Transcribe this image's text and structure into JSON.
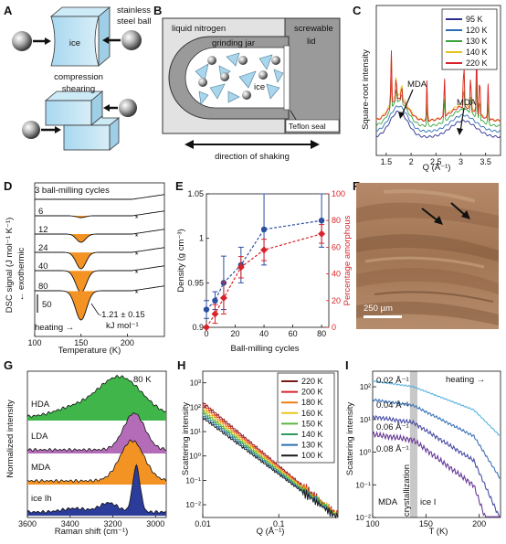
{
  "panels": {
    "A": {
      "letter": "A",
      "ice": "ice",
      "ball_label": [
        "stainless",
        "steel ball"
      ],
      "compression": "compression",
      "shearing": "shearing"
    },
    "B": {
      "letter": "B",
      "liquid_nitrogen": "liquid nitrogen",
      "screwable": "screwable",
      "lid": "lid",
      "grinding_jar": "grinding jar",
      "ice": "ice",
      "teflon": "Teflon seal",
      "shaking": "direction of shaking"
    },
    "C": {
      "letter": "C",
      "ylabel": "Square-root intensity",
      "xlabel": "Q (Å⁻¹)",
      "mda": "MDA",
      "mda2": "MDA"
    },
    "D": {
      "letter": "D",
      "ylabel": "DSC signal (J mol⁻¹ K⁻¹)",
      "exo": "← exothermic",
      "xlabel": "Temperature (K)",
      "header": "3 ball-milling cycles",
      "scale": "50",
      "heating": "heating →",
      "enthalpy": "-1.21 ± 0.15",
      "enthalpy_unit": "kJ mol⁻¹",
      "star": "*"
    },
    "E": {
      "letter": "E",
      "ylabel_left": "Density (g cm⁻³)",
      "ylabel_right": "Percentage amorphous",
      "xlabel": "Ball-milling cycles"
    },
    "F": {
      "letter": "F",
      "scalebar": "250 µm"
    },
    "G": {
      "letter": "G",
      "temp": "80 K",
      "ylabel": "Normalized intensity",
      "xlabel": "Raman shift (cm⁻¹)",
      "labels": [
        "HDA",
        "LDA",
        "MDA",
        "ice Ih"
      ]
    },
    "H": {
      "letter": "H",
      "ylabel": "Scattering intensity",
      "xlabel": "Q (Å⁻¹)"
    },
    "I": {
      "letter": "I",
      "ylabel": "Scattering intensity",
      "xlabel": "T (K)",
      "heating": "heating →",
      "q_labels": [
        "0.02 Å⁻¹",
        "0.04 Å⁻¹",
        "0.06 Å⁻¹",
        "0.08 Å⁻¹"
      ],
      "mda": "MDA",
      "cryst": "crystallization",
      "ice": "ice I"
    }
  },
  "chart_data": [
    {
      "panel": "C",
      "type": "line",
      "xlabel": "Q (Å⁻¹)",
      "ylabel": "Square-root intensity",
      "xlim": [
        1.3,
        3.8
      ],
      "xticks": [
        "1.5",
        "2",
        "2.5",
        "3",
        "3.5"
      ],
      "xtick_values": [
        1.5,
        2.0,
        2.5,
        3.0,
        3.5
      ],
      "legend_position": "top-right",
      "series": [
        {
          "name": "95 K",
          "color": "#2b2f8f"
        },
        {
          "name": "120 K",
          "color": "#2a6fb4"
        },
        {
          "name": "130 K",
          "color": "#3aa33a"
        },
        {
          "name": "140 K",
          "color": "#e3c21a"
        },
        {
          "name": "220 K",
          "color": "#d9232a"
        }
      ],
      "peaks_Q": [
        1.6,
        1.7,
        1.81,
        2.32,
        2.67,
        3.06,
        3.2,
        3.32,
        3.38,
        3.55
      ]
    },
    {
      "panel": "D",
      "type": "line",
      "xlabel": "Temperature (K)",
      "xlim": [
        100,
        240
      ],
      "xticks": [
        "100",
        "150",
        "200"
      ],
      "xtick_values": [
        100,
        150,
        200
      ],
      "series": [
        {
          "name": "3 ball-milling cycles",
          "label": "",
          "dip_depth": 0
        },
        {
          "name": "6",
          "label": "6",
          "dip_depth": 2
        },
        {
          "name": "12",
          "label": "12",
          "dip_depth": 9
        },
        {
          "name": "24",
          "label": "24",
          "dip_depth": 18
        },
        {
          "name": "40",
          "label": "40",
          "dip_depth": 24
        },
        {
          "name": "80",
          "label": "80",
          "dip_depth": 32
        }
      ],
      "peak_T": 150
    },
    {
      "panel": "E",
      "type": "scatter",
      "xlabel": "Ball-milling cycles",
      "ylabel_left": "Density (g cm⁻³)",
      "ylabel_right": "Percentage amorphous",
      "xlim": [
        0,
        85
      ],
      "ylim_left": [
        0.9,
        1.05
      ],
      "ylim_right": [
        0,
        100
      ],
      "xticks": [
        "0",
        "20",
        "40",
        "60",
        "80"
      ],
      "xtick_values": [
        0,
        20,
        40,
        60,
        80
      ],
      "yticks_left": [
        "0.9",
        "0.95",
        "1",
        "1.05"
      ],
      "yticks_left_values": [
        0.9,
        0.95,
        1.0,
        1.05
      ],
      "yticks_right": [
        "0",
        "20",
        "40",
        "60",
        "80",
        "100"
      ],
      "yticks_right_values": [
        0,
        20,
        40,
        60,
        80,
        100
      ],
      "series": [
        {
          "name": "density",
          "color": "#2d4fa0",
          "x": [
            0,
            6,
            12,
            24,
            40,
            80
          ],
          "values": [
            0.92,
            0.93,
            0.95,
            0.97,
            1.01,
            1.02
          ],
          "err": [
            0.01,
            0.01,
            0.03,
            0.02,
            0.04,
            0.03
          ]
        },
        {
          "name": "percentage amorphous",
          "color": "#d9232a",
          "x": [
            0,
            6,
            12,
            24,
            40,
            80
          ],
          "values": [
            0,
            10,
            22,
            45,
            58,
            70
          ],
          "err": [
            0,
            7,
            12,
            8,
            8,
            7
          ]
        }
      ]
    },
    {
      "panel": "G",
      "type": "area",
      "xlabel": "Raman shift (cm⁻¹)",
      "xlim": [
        3600,
        2950
      ],
      "xticks": [
        "3600",
        "3400",
        "3200",
        "3000"
      ],
      "xtick_values": [
        3600,
        3400,
        3200,
        3000
      ],
      "series": [
        {
          "name": "HDA",
          "color": "#3fb54a"
        },
        {
          "name": "LDA",
          "color": "#b46cb8"
        },
        {
          "name": "MDA",
          "color": "#f39324"
        },
        {
          "name": "ice Ih",
          "color": "#2b3c9a"
        }
      ]
    },
    {
      "panel": "H",
      "type": "line",
      "xlabel": "Q (Å⁻¹)",
      "ylabel": "Scattering intensity",
      "xscale": "log",
      "yscale": "log",
      "xlim": [
        0.01,
        0.6
      ],
      "ylim": [
        0.003,
        3000
      ],
      "xticks": [
        "0.01",
        "0.1"
      ],
      "xtick_values": [
        0.01,
        0.1
      ],
      "yticks": [
        "10⁻²",
        "10⁻¹",
        "10⁰",
        "10¹",
        "10²",
        "10³"
      ],
      "ytick_values": [
        0.01,
        0.1,
        1,
        10,
        100,
        1000
      ],
      "legend_position": "top-right",
      "series": [
        {
          "name": "220 K",
          "color": "#7a1a1a"
        },
        {
          "name": "200 K",
          "color": "#d9232a"
        },
        {
          "name": "180 K",
          "color": "#f07d1a"
        },
        {
          "name": "160 K",
          "color": "#e8c81a"
        },
        {
          "name": "150 K",
          "color": "#5db640"
        },
        {
          "name": "140 K",
          "color": "#2f9a5a"
        },
        {
          "name": "130 K",
          "color": "#2a6fb4"
        },
        {
          "name": "100 K",
          "color": "#1a1a1a"
        }
      ]
    },
    {
      "panel": "I",
      "type": "line",
      "xlabel": "T (K)",
      "ylabel": "Scattering intensity",
      "yscale": "log",
      "xlim": [
        100,
        220
      ],
      "ylim": [
        0.01,
        300
      ],
      "xticks": [
        "100",
        "150",
        "200"
      ],
      "xtick_values": [
        100,
        150,
        200
      ],
      "yticks": [
        "10⁻²",
        "10⁻¹",
        "10⁰",
        "10¹",
        "10²"
      ],
      "ytick_values": [
        0.01,
        0.1,
        1,
        10,
        100
      ],
      "crystallization_band": [
        135,
        142
      ],
      "series": [
        {
          "name": "0.02 Å⁻¹",
          "color": "#5ab3e0"
        },
        {
          "name": "0.04 Å⁻¹",
          "color": "#3d74b8"
        },
        {
          "name": "0.06 Å⁻¹",
          "color": "#4a4ea6"
        },
        {
          "name": "0.08 Å⁻¹",
          "color": "#6a3a9a"
        }
      ]
    }
  ]
}
